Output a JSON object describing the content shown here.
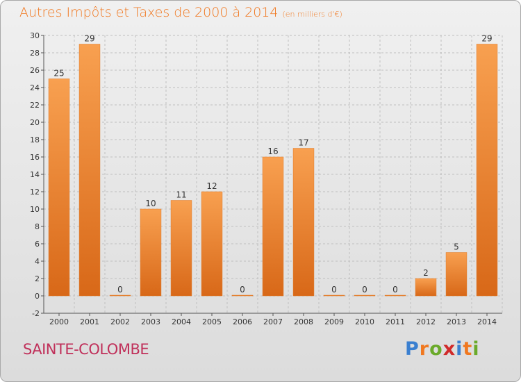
{
  "header": {
    "title": "Autres Impôts et Taxes de 2000 à 2014",
    "unit": "(en milliers d'€)"
  },
  "footer": {
    "place": "SAINTE-COLOMBE",
    "brand": "Proxiti",
    "brand_letters": [
      {
        "char": "P",
        "color": "#3a7fd0"
      },
      {
        "char": "r",
        "color": "#f07820"
      },
      {
        "char": "o",
        "color": "#6aaa2a"
      },
      {
        "char": "x",
        "color": "#d02a2a"
      },
      {
        "char": "i",
        "color": "#3a7fd0"
      },
      {
        "char": "t",
        "color": "#f07820"
      },
      {
        "char": "i",
        "color": "#6aaa2a"
      }
    ]
  },
  "colors": {
    "bar_light": "#f8a050",
    "bar_dark": "#d86818",
    "title": "#f07820",
    "place": "#c0305a"
  },
  "chart_data": {
    "type": "bar",
    "title": "Autres Impôts et Taxes de 2000 à 2014",
    "subtitle": "(en milliers d'€)",
    "categories": [
      "2000",
      "2001",
      "2002",
      "2003",
      "2004",
      "2005",
      "2006",
      "2007",
      "2008",
      "2009",
      "2010",
      "2011",
      "2012",
      "2013",
      "2014"
    ],
    "values": [
      25,
      29,
      0,
      10,
      11,
      12,
      0,
      16,
      17,
      0,
      0,
      0,
      2,
      5,
      29
    ],
    "ylim": [
      -2,
      30
    ],
    "yticks": [
      -2,
      0,
      2,
      4,
      6,
      8,
      10,
      12,
      14,
      16,
      18,
      20,
      22,
      24,
      26,
      28,
      30
    ],
    "grid": true,
    "data_labels": true
  }
}
